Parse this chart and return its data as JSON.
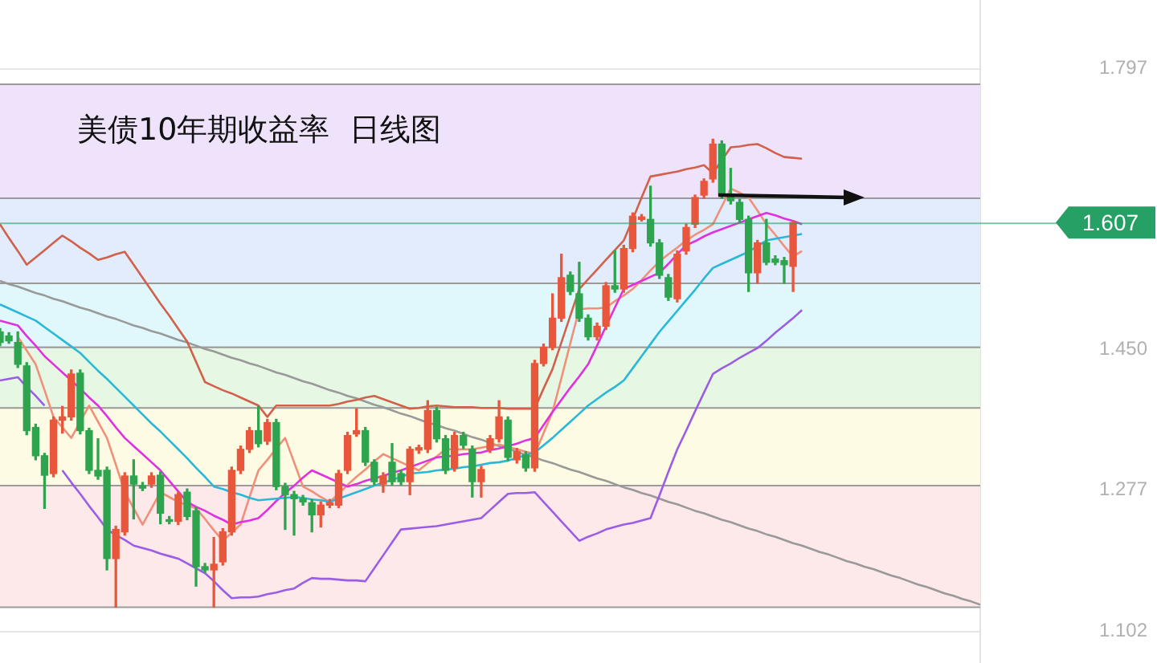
{
  "chart_data": {
    "type": "candlestick",
    "title": "美债10年期收益率  日线图",
    "categories": [
      null,
      null,
      null,
      null,
      null,
      null,
      null,
      null,
      null,
      null,
      null,
      null,
      null,
      null,
      null,
      null,
      null,
      null,
      null,
      null,
      null,
      null,
      null,
      null,
      null,
      null,
      null,
      null,
      null,
      null,
      null,
      null,
      null,
      null,
      null,
      null,
      null,
      null,
      null,
      null,
      null,
      null,
      null,
      null,
      null,
      null,
      null,
      null,
      null,
      null,
      null,
      null,
      null,
      null,
      null,
      null,
      null,
      null,
      null,
      null,
      null,
      null,
      null,
      null,
      null,
      null,
      null,
      null,
      null,
      null,
      null,
      null,
      null,
      null,
      null,
      null,
      null,
      null,
      null,
      null,
      null,
      null,
      null,
      null,
      null,
      null,
      null,
      null,
      null,
      null,
      null,
      null,
      null,
      null,
      null,
      null,
      null,
      null,
      null,
      null,
      null,
      null,
      null,
      null,
      null,
      null,
      null,
      null,
      null,
      null,
      null
    ],
    "ohlc": [
      [
        1.472,
        1.476,
        1.455,
        1.459
      ],
      [
        1.467,
        1.471,
        1.458,
        1.461
      ],
      [
        1.459,
        1.472,
        1.428,
        1.432
      ],
      [
        1.43,
        1.434,
        1.345,
        1.35
      ],
      [
        1.354,
        1.358,
        1.314,
        1.319
      ],
      [
        1.319,
        1.322,
        1.254,
        1.295
      ],
      [
        1.297,
        1.367,
        1.293,
        1.363
      ],
      [
        1.363,
        1.38,
        1.347,
        1.367
      ],
      [
        1.367,
        1.425,
        1.363,
        1.42
      ],
      [
        1.421,
        1.425,
        1.346,
        1.35
      ],
      [
        1.35,
        1.353,
        1.297,
        1.301
      ],
      [
        1.301,
        1.34,
        1.29,
        1.294
      ],
      [
        1.301,
        1.305,
        1.178,
        1.192
      ],
      [
        1.192,
        1.232,
        1.132,
        1.228
      ],
      [
        1.225,
        1.298,
        1.221,
        1.294
      ],
      [
        1.294,
        1.314,
        1.241,
        1.284
      ],
      [
        1.282,
        1.286,
        1.276,
        1.279
      ],
      [
        1.284,
        1.298,
        1.28,
        1.294
      ],
      [
        1.295,
        1.299,
        1.235,
        1.248
      ],
      [
        1.24,
        1.244,
        1.235,
        1.238
      ],
      [
        1.238,
        1.274,
        1.234,
        1.271
      ],
      [
        1.274,
        1.278,
        1.24,
        1.244
      ],
      [
        1.251,
        1.255,
        1.158,
        1.182
      ],
      [
        1.182,
        1.186,
        1.175,
        1.178
      ],
      [
        1.178,
        1.218,
        1.132,
        1.185
      ],
      [
        1.188,
        1.229,
        1.184,
        1.225
      ],
      [
        1.225,
        1.305,
        1.221,
        1.301
      ],
      [
        1.301,
        1.331,
        1.297,
        1.327
      ],
      [
        1.327,
        1.354,
        1.323,
        1.35
      ],
      [
        1.35,
        1.38,
        1.33,
        1.334
      ],
      [
        1.337,
        1.364,
        1.333,
        1.36
      ],
      [
        1.36,
        1.364,
        1.277,
        1.281
      ],
      [
        1.281,
        1.285,
        1.228,
        1.271
      ],
      [
        1.271,
        1.275,
        1.221,
        1.266
      ],
      [
        1.266,
        1.27,
        1.258,
        1.262
      ],
      [
        1.261,
        1.265,
        1.225,
        1.246
      ],
      [
        1.246,
        1.262,
        1.231,
        1.258
      ],
      [
        1.258,
        1.265,
        1.255,
        1.261
      ],
      [
        1.258,
        1.301,
        1.255,
        1.297
      ],
      [
        1.301,
        1.348,
        1.297,
        1.344
      ],
      [
        1.346,
        1.377,
        1.343,
        1.35
      ],
      [
        1.35,
        1.354,
        1.307,
        1.311
      ],
      [
        1.311,
        1.314,
        1.283,
        1.287
      ],
      [
        1.284,
        1.298,
        1.274,
        1.294
      ],
      [
        1.311,
        1.334,
        1.283,
        1.287
      ],
      [
        1.297,
        1.301,
        1.283,
        1.287
      ],
      [
        1.287,
        1.33,
        1.271,
        1.327
      ],
      [
        1.326,
        1.332,
        1.322,
        1.329
      ],
      [
        1.327,
        1.387,
        1.323,
        1.375
      ],
      [
        1.375,
        1.379,
        1.336,
        1.34
      ],
      [
        1.34,
        1.344,
        1.297,
        1.301
      ],
      [
        1.304,
        1.348,
        1.3,
        1.344
      ],
      [
        1.344,
        1.348,
        1.328,
        1.332
      ],
      [
        1.327,
        1.331,
        1.268,
        1.287
      ],
      [
        1.287,
        1.306,
        1.268,
        1.302
      ],
      [
        1.327,
        1.344,
        1.323,
        1.34
      ],
      [
        1.34,
        1.387,
        1.336,
        1.367
      ],
      [
        1.363,
        1.367,
        1.313,
        1.317
      ],
      [
        1.314,
        1.328,
        1.31,
        1.324
      ],
      [
        1.32,
        1.324,
        1.3,
        1.304
      ],
      [
        1.304,
        1.437,
        1.3,
        1.433
      ],
      [
        1.433,
        1.457,
        1.43,
        1.453
      ],
      [
        1.453,
        1.519,
        1.45,
        1.489
      ],
      [
        1.489,
        1.568,
        1.485,
        1.539
      ],
      [
        1.542,
        1.546,
        1.518,
        1.522
      ],
      [
        1.519,
        1.558,
        1.485,
        1.489
      ],
      [
        1.489,
        1.493,
        1.462,
        1.466
      ],
      [
        1.466,
        1.483,
        1.462,
        1.479
      ],
      [
        1.479,
        1.533,
        1.475,
        1.529
      ],
      [
        1.529,
        1.572,
        1.521,
        1.525
      ],
      [
        1.525,
        1.579,
        1.521,
        1.575
      ],
      [
        1.575,
        1.619,
        1.571,
        1.615
      ],
      [
        1.611,
        1.617,
        1.609,
        1.614
      ],
      [
        1.611,
        1.652,
        1.578,
        1.582
      ],
      [
        1.582,
        1.586,
        1.538,
        1.542
      ],
      [
        1.539,
        1.543,
        1.511,
        1.515
      ],
      [
        1.513,
        1.572,
        1.509,
        1.568
      ],
      [
        1.572,
        1.605,
        1.568,
        1.601
      ],
      [
        1.605,
        1.641,
        1.601,
        1.638
      ],
      [
        1.641,
        1.661,
        1.637,
        1.658
      ],
      [
        1.661,
        1.71,
        1.657,
        1.704
      ],
      [
        1.704,
        1.708,
        1.637,
        1.641
      ],
      [
        1.641,
        1.674,
        1.63,
        1.634
      ],
      [
        1.632,
        1.636,
        1.607,
        1.611
      ],
      [
        1.611,
        1.615,
        1.522,
        1.545
      ],
      [
        1.545,
        1.585,
        1.532,
        1.582
      ],
      [
        1.582,
        1.611,
        1.555,
        1.558
      ],
      [
        1.562,
        1.566,
        1.555,
        1.558
      ],
      [
        1.56,
        1.564,
        1.532,
        1.555
      ],
      [
        1.553,
        1.609,
        1.522,
        1.607
      ],
      null,
      null,
      null,
      null,
      null,
      null,
      null,
      null,
      null,
      null,
      null,
      null,
      null,
      null,
      null,
      null,
      null,
      null,
      null,
      null,
      null
    ],
    "colors": [
      "#2ea44f",
      "#2ea44f",
      "#2ea44f",
      "#2ea44f",
      "#2ea44f",
      "#2ea44f",
      "#e8573c",
      "#e8573c",
      "#e8573c",
      "#2ea44f",
      "#2ea44f",
      "#2ea44f",
      "#2ea44f",
      "#e8573c",
      "#e8573c",
      "#2ea44f",
      "#2ea44f",
      "#e8573c",
      "#2ea44f",
      "#2ea44f",
      "#e8573c",
      "#2ea44f",
      "#2ea44f",
      "#2ea44f",
      "#e8573c",
      "#e8573c",
      "#e8573c",
      "#e8573c",
      "#e8573c",
      "#2ea44f",
      "#e8573c",
      "#2ea44f",
      "#2ea44f",
      "#2ea44f",
      "#2ea44f",
      "#2ea44f",
      "#e8573c",
      "#e8573c",
      "#e8573c",
      "#e8573c",
      "#e8573c",
      "#2ea44f",
      "#2ea44f",
      "#e8573c",
      "#2ea44f",
      "#2ea44f",
      "#e8573c",
      "#e8573c",
      "#e8573c",
      "#2ea44f",
      "#2ea44f",
      "#e8573c",
      "#2ea44f",
      "#2ea44f",
      "#e8573c",
      "#e8573c",
      "#e8573c",
      "#2ea44f",
      "#e8573c",
      "#2ea44f",
      "#e8573c",
      "#e8573c",
      "#e8573c",
      "#e8573c",
      "#2ea44f",
      "#2ea44f",
      "#2ea44f",
      "#e8573c",
      "#e8573c",
      "#2ea44f",
      "#e8573c",
      "#e8573c",
      "#e8573c",
      "#2ea44f",
      "#2ea44f",
      "#2ea44f",
      "#e8573c",
      "#e8573c",
      "#e8573c",
      "#e8573c",
      "#e8573c",
      "#2ea44f",
      "#2ea44f",
      "#2ea44f",
      "#2ea44f",
      "#e8573c",
      "#2ea44f",
      "#2ea44f",
      "#2ea44f",
      "#e8573c",
      null,
      null,
      null,
      null,
      null,
      null,
      null,
      null,
      null,
      null,
      null,
      null,
      null,
      null,
      null,
      null,
      null,
      null,
      null,
      null,
      null
    ],
    "series": [
      {
        "type": "line",
        "color": "#d2604b",
        "values": [
          1.605,
          1.588,
          1.572,
          1.555,
          1.564,
          1.573,
          1.582,
          1.591,
          1.584,
          1.576,
          1.569,
          1.561,
          1.564,
          1.568,
          1.571,
          1.555,
          1.539,
          1.523,
          1.507,
          1.492,
          1.476,
          1.46,
          1.435,
          1.41,
          1.405,
          1.4,
          1.396,
          1.391,
          1.386,
          1.381,
          1.367,
          1.381,
          1.381,
          1.381,
          1.381,
          1.381,
          1.381,
          1.381,
          1.383,
          1.386,
          1.388,
          1.391,
          1.393,
          1.389,
          1.385,
          1.381,
          1.377,
          1.378,
          1.38,
          1.381,
          1.38,
          1.379,
          1.379,
          1.379,
          1.378,
          1.378,
          1.378,
          1.377,
          1.377,
          1.377,
          1.377,
          1.402,
          1.426,
          1.459,
          1.492,
          1.525,
          1.537,
          1.549,
          1.561,
          1.573,
          1.585,
          1.611,
          1.638,
          1.664,
          1.666,
          1.668,
          1.67,
          1.673,
          1.675,
          1.678,
          1.668,
          1.684,
          1.7,
          1.701,
          1.703,
          1.704,
          1.699,
          1.693,
          1.688,
          1.687,
          1.686,
          null,
          null,
          null,
          null,
          null,
          null,
          null,
          null,
          null,
          null,
          null,
          null,
          null,
          null,
          null,
          null,
          null,
          null,
          null,
          null
        ]
      },
      {
        "type": "line",
        "color": "#9b5de5",
        "values": [
          1.412,
          1.414,
          1.416,
          1.404,
          1.393,
          1.381,
          null,
          1.301,
          1.286,
          1.272,
          1.257,
          1.243,
          1.228,
          1.221,
          1.215,
          1.208,
          1.205,
          1.202,
          1.198,
          1.195,
          1.192,
          1.186,
          1.18,
          1.174,
          1.164,
          1.153,
          1.143,
          1.144,
          1.144,
          1.145,
          1.148,
          1.15,
          1.153,
          1.155,
          1.162,
          1.168,
          1.167,
          1.167,
          1.166,
          1.165,
          1.165,
          1.164,
          1.18,
          1.196,
          1.212,
          1.228,
          1.229,
          1.23,
          1.231,
          1.232,
          1.234,
          1.236,
          1.238,
          1.24,
          1.242,
          1.252,
          1.262,
          1.272,
          1.273,
          1.273,
          1.274,
          1.262,
          1.25,
          1.238,
          1.226,
          1.214,
          1.219,
          1.223,
          1.228,
          1.231,
          1.234,
          1.236,
          1.239,
          1.242,
          1.27,
          1.299,
          1.327,
          1.35,
          1.374,
          1.397,
          1.42,
          1.427,
          1.433,
          1.44,
          1.446,
          1.452,
          1.461,
          1.471,
          1.48,
          1.489,
          1.499,
          null,
          null,
          null,
          null,
          null,
          null,
          null,
          null,
          null,
          null,
          null,
          null,
          null,
          null,
          null,
          null,
          null,
          null,
          null,
          null
        ]
      },
      {
        "type": "line",
        "color": "#2ab8d8",
        "values": [
          1.506,
          1.501,
          1.496,
          1.491,
          1.486,
          1.478,
          1.47,
          1.462,
          1.454,
          1.446,
          1.435,
          1.424,
          1.414,
          1.403,
          1.392,
          1.381,
          1.37,
          1.359,
          1.349,
          1.338,
          1.327,
          1.316,
          1.304,
          1.293,
          1.281,
          1.278,
          1.274,
          1.271,
          1.267,
          1.264,
          1.265,
          1.266,
          1.267,
          1.268,
          1.267,
          1.265,
          1.264,
          1.262,
          1.266,
          1.27,
          1.274,
          1.278,
          1.282,
          1.286,
          1.289,
          1.293,
          1.297,
          1.298,
          1.299,
          1.301,
          1.302,
          1.303,
          1.305,
          1.306,
          1.308,
          1.31,
          1.311,
          1.313,
          1.316,
          1.32,
          1.323,
          1.332,
          1.341,
          1.351,
          1.361,
          1.371,
          1.381,
          1.389,
          1.397,
          1.404,
          1.412,
          1.427,
          1.442,
          1.457,
          1.472,
          1.485,
          1.498,
          1.511,
          1.524,
          1.538,
          1.551,
          1.556,
          1.561,
          1.566,
          1.571,
          1.578,
          1.585,
          1.587,
          1.589,
          1.591,
          1.593,
          null,
          null,
          null,
          null,
          null,
          null,
          null,
          null,
          null,
          null,
          null,
          null,
          null,
          null,
          null,
          null,
          null,
          null,
          null,
          null
        ]
      },
      {
        "type": "line",
        "color": "#e030e0",
        "values": [
          1.486,
          1.483,
          1.48,
          1.467,
          1.455,
          1.442,
          1.432,
          1.422,
          1.412,
          1.402,
          1.391,
          1.381,
          1.368,
          1.354,
          1.341,
          1.331,
          1.321,
          1.311,
          1.301,
          1.288,
          1.275,
          1.262,
          1.256,
          1.251,
          1.245,
          1.24,
          1.234,
          1.237,
          1.239,
          1.242,
          1.252,
          1.263,
          1.273,
          1.282,
          1.292,
          1.301,
          1.296,
          1.291,
          1.286,
          1.281,
          1.284,
          1.288,
          1.291,
          1.294,
          1.298,
          1.301,
          1.305,
          1.309,
          1.313,
          1.317,
          1.318,
          1.319,
          1.321,
          1.322,
          1.323,
          1.326,
          1.328,
          1.331,
          1.334,
          1.338,
          1.341,
          1.357,
          1.373,
          1.388,
          1.403,
          1.417,
          1.432,
          1.455,
          1.479,
          1.502,
          1.525,
          1.53,
          1.535,
          1.54,
          1.545,
          1.556,
          1.568,
          1.579,
          1.584,
          1.59,
          1.595,
          1.599,
          1.603,
          1.607,
          1.611,
          1.615,
          1.619,
          1.616,
          1.612,
          1.609,
          1.605,
          null,
          null,
          null,
          null,
          null,
          null,
          null,
          null,
          null,
          null,
          null,
          null,
          null,
          null,
          null,
          null,
          null,
          null,
          null,
          null
        ]
      },
      {
        "type": "line",
        "color": "#f0907a",
        "values": [
          null,
          null,
          1.466,
          1.449,
          1.432,
          1.4,
          1.367,
          1.354,
          1.341,
          1.361,
          1.381,
          1.361,
          1.341,
          1.308,
          1.274,
          1.254,
          1.234,
          1.254,
          1.274,
          1.268,
          1.262,
          1.258,
          1.254,
          1.241,
          1.227,
          1.214,
          1.224,
          1.234,
          1.268,
          1.301,
          1.314,
          1.328,
          1.341,
          1.311,
          1.281,
          1.275,
          1.268,
          1.262,
          1.272,
          1.283,
          1.293,
          1.302,
          1.312,
          1.321,
          1.316,
          1.311,
          1.306,
          1.301,
          1.31,
          1.318,
          1.327,
          1.327,
          1.327,
          1.327,
          1.329,
          1.331,
          1.333,
          1.33,
          1.327,
          1.324,
          1.321,
          1.347,
          1.373,
          1.415,
          1.458,
          1.5,
          1.501,
          1.501,
          1.502,
          1.51,
          1.517,
          1.525,
          1.536,
          1.548,
          1.559,
          1.568,
          1.576,
          1.585,
          1.592,
          1.598,
          1.605,
          1.627,
          1.649,
          1.644,
          1.638,
          1.622,
          1.605,
          1.592,
          1.578,
          1.565,
          1.572,
          null,
          null,
          null,
          null,
          null,
          null,
          null,
          null,
          null,
          null,
          null,
          null,
          null,
          null,
          null,
          null,
          null,
          null,
          null,
          null
        ]
      },
      {
        "type": "line",
        "color": "#999999",
        "values": [
          1.535,
          1.531,
          1.528,
          1.524,
          1.52,
          1.517,
          1.513,
          1.51,
          1.506,
          1.502,
          1.499,
          1.495,
          1.491,
          1.488,
          1.484,
          1.48,
          1.477,
          1.473,
          1.47,
          1.466,
          1.462,
          1.459,
          1.455,
          1.451,
          1.448,
          1.444,
          1.44,
          1.437,
          1.433,
          1.43,
          1.426,
          1.422,
          1.419,
          1.415,
          1.411,
          1.408,
          1.404,
          1.4,
          1.397,
          1.393,
          1.39,
          1.386,
          1.382,
          1.379,
          1.375,
          1.371,
          1.368,
          1.364,
          1.36,
          1.357,
          1.353,
          1.35,
          1.346,
          1.342,
          1.339,
          1.335,
          1.331,
          1.328,
          1.324,
          1.32,
          1.317,
          1.313,
          1.31,
          1.306,
          1.302,
          1.299,
          1.295,
          1.291,
          1.288,
          1.284,
          1.28,
          1.277,
          1.273,
          1.27,
          1.266,
          1.262,
          1.259,
          1.255,
          1.251,
          1.248,
          1.244,
          1.24,
          1.237,
          1.233,
          1.229,
          1.226,
          1.222,
          1.219,
          1.215,
          1.211,
          1.208,
          1.204,
          1.2,
          1.197,
          1.193,
          1.189,
          1.186,
          1.182,
          1.179,
          1.175,
          1.171,
          1.168,
          1.164,
          1.16,
          1.157,
          1.153,
          1.149,
          1.146,
          1.142,
          1.139,
          1.135
        ]
      }
    ],
    "ylim": [
      1.063,
      1.882
    ],
    "yticks": [
      1.102,
      1.277,
      {
        "value": 1.45,
        "label": "1.450"
      },
      1.797
    ],
    "tick_labels": "y",
    "grid": "y",
    "marker": "none",
    "line_style": "solid",
    "bands": [
      {
        "axis": "y",
        "from": 1.638,
        "to": 1.779,
        "color": "#efe3fb"
      },
      {
        "axis": "y",
        "from": 1.533,
        "to": 1.638,
        "color": "#e3ecfd"
      },
      {
        "axis": "y",
        "from": 1.454,
        "to": 1.533,
        "color": "#e0f8fc"
      },
      {
        "axis": "y",
        "from": 1.379,
        "to": 1.454,
        "color": "#e6f8e3"
      },
      {
        "axis": "y",
        "from": 1.283,
        "to": 1.379,
        "color": "#fdfbe3"
      },
      {
        "axis": "y",
        "from": 1.133,
        "to": 1.283,
        "color": "#fde9e9"
      }
    ],
    "ref_lines": [
      {
        "axis": "y",
        "value": 1.607,
        "label": "1.607",
        "color": "#27a065"
      }
    ]
  }
}
